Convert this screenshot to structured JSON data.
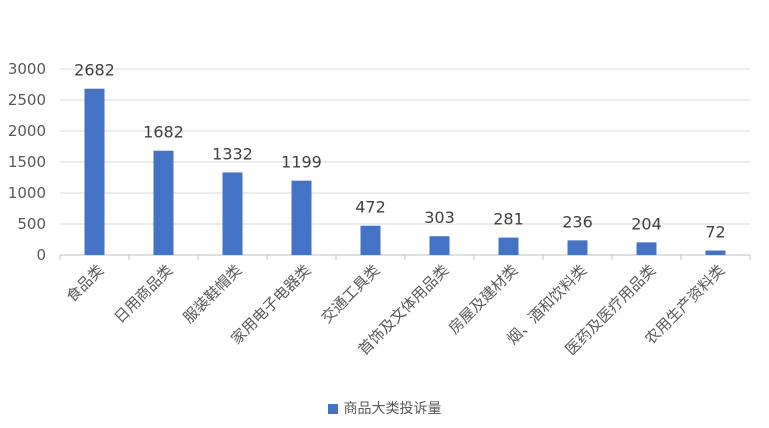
{
  "chart_data": {
    "type": "bar",
    "categories": [
      "食品类",
      "日用商品类",
      "服装鞋帽类",
      "家用电子电器类",
      "交通工具类",
      "首饰及文体用品类",
      "房屋及建材类",
      "烟、酒和饮料类",
      "医药及医疗用品类",
      "农用生产资料类"
    ],
    "series": [
      {
        "name": "商品大类投诉量",
        "values": [
          2682,
          1682,
          1332,
          1199,
          472,
          303,
          281,
          236,
          204,
          72
        ],
        "color": "#4472c4"
      }
    ],
    "ylim": [
      0,
      3000
    ],
    "yticks": [
      0,
      500,
      1000,
      1500,
      2000,
      2500,
      3000
    ],
    "grid": true,
    "legend_position": "bottom",
    "data_labels": true
  }
}
